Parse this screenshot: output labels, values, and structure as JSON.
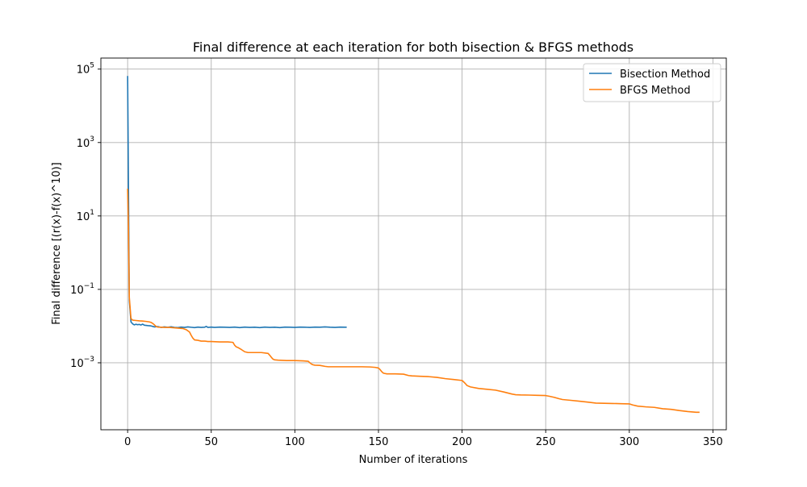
{
  "chart_data": {
    "type": "line",
    "title": "Final difference at each iteration for both bisection & BFGS methods",
    "xlabel": "Number of iterations",
    "ylabel": "Final difference [(r(x)-f(x)^10)]",
    "xlim": [
      -16,
      358
    ],
    "ylim": [
      1.5e-05,
      200000
    ],
    "yscale": "log",
    "grid": true,
    "legend_position": "upper right",
    "x_ticks": [
      {
        "value": 0,
        "label": "0"
      },
      {
        "value": 50,
        "label": "50"
      },
      {
        "value": 100,
        "label": "100"
      },
      {
        "value": 150,
        "label": "150"
      },
      {
        "value": 200,
        "label": "200"
      },
      {
        "value": 250,
        "label": "250"
      },
      {
        "value": 300,
        "label": "300"
      },
      {
        "value": 350,
        "label": "350"
      }
    ],
    "y_ticks": [
      {
        "value": 0.001,
        "base": "10",
        "exp": "−3"
      },
      {
        "value": 0.1,
        "base": "10",
        "exp": "−1"
      },
      {
        "value": 10,
        "base": "10",
        "exp": "1"
      },
      {
        "value": 1000,
        "base": "10",
        "exp": "3"
      },
      {
        "value": 100000,
        "base": "10",
        "exp": "5"
      }
    ],
    "series": [
      {
        "name": "Bisection Method",
        "color": "#1f77b4",
        "x": [
          0,
          1,
          2,
          3,
          4,
          5,
          6,
          7,
          8,
          9,
          10,
          12,
          14,
          16,
          18,
          20,
          22,
          24,
          26,
          28,
          30,
          32,
          34,
          36,
          38,
          40,
          42,
          44,
          46,
          47,
          48,
          50,
          52,
          55,
          58,
          61,
          64,
          67,
          70,
          73,
          76,
          79,
          82,
          85,
          88,
          91,
          94,
          97,
          100,
          103,
          106,
          109,
          112,
          115,
          118,
          121,
          124,
          127,
          130,
          131
        ],
        "y": [
          65000,
          0.05,
          0.013,
          0.0115,
          0.0108,
          0.0112,
          0.0109,
          0.0111,
          0.0107,
          0.0113,
          0.0106,
          0.0103,
          0.0101,
          0.0095,
          0.0097,
          0.0092,
          0.0095,
          0.0093,
          0.0096,
          0.0092,
          0.0091,
          0.0094,
          0.0092,
          0.0095,
          0.0093,
          0.0091,
          0.0094,
          0.0092,
          0.0093,
          0.0098,
          0.0092,
          0.0094,
          0.0092,
          0.0094,
          0.0093,
          0.0092,
          0.0094,
          0.0091,
          0.0094,
          0.0092,
          0.0093,
          0.0091,
          0.0094,
          0.0092,
          0.0093,
          0.0091,
          0.0094,
          0.0093,
          0.0092,
          0.0094,
          0.0093,
          0.0092,
          0.0094,
          0.0093,
          0.0095,
          0.0093,
          0.0092,
          0.0094,
          0.0093,
          0.0093
        ]
      },
      {
        "name": "BFGS Method",
        "color": "#ff7f0e",
        "x": [
          0,
          0.5,
          1,
          2,
          3,
          5,
          7,
          9,
          11,
          13,
          14,
          15,
          16,
          17,
          18,
          20,
          22,
          25,
          30,
          33,
          35,
          37,
          38,
          39,
          40,
          42,
          44,
          46,
          48,
          50,
          55,
          60,
          63,
          64,
          65,
          66,
          68,
          70,
          72,
          75,
          80,
          84,
          85,
          86,
          87,
          88,
          90,
          95,
          100,
          105,
          108,
          109,
          110,
          111,
          112,
          115,
          118,
          120,
          125,
          130,
          140,
          145,
          148,
          150,
          151,
          152,
          153,
          155,
          160,
          165,
          168,
          170,
          175,
          180,
          185,
          190,
          195,
          200,
          201,
          202,
          203,
          205,
          210,
          215,
          220,
          225,
          230,
          232,
          235,
          240,
          245,
          250,
          252,
          255,
          258,
          260,
          265,
          270,
          275,
          280,
          285,
          290,
          295,
          300,
          302,
          305,
          310,
          315,
          320,
          325,
          330,
          335,
          340,
          342
        ],
        "y": [
          55,
          5,
          0.06,
          0.016,
          0.0145,
          0.0142,
          0.0139,
          0.0137,
          0.0134,
          0.013,
          0.0126,
          0.0118,
          0.0108,
          0.0098,
          0.0094,
          0.0093,
          0.0092,
          0.0092,
          0.0088,
          0.0086,
          0.008,
          0.0069,
          0.0056,
          0.0047,
          0.0042,
          0.0041,
          0.0039,
          0.0039,
          0.0038,
          0.0038,
          0.0037,
          0.0037,
          0.0036,
          0.003,
          0.0027,
          0.0026,
          0.0023,
          0.002,
          0.0019,
          0.0019,
          0.0019,
          0.0018,
          0.0016,
          0.0014,
          0.00125,
          0.0012,
          0.00118,
          0.00115,
          0.00115,
          0.00113,
          0.0011,
          0.001,
          0.00092,
          0.00088,
          0.00086,
          0.00085,
          0.0008,
          0.00078,
          0.00078,
          0.00078,
          0.00078,
          0.00077,
          0.00075,
          0.00072,
          0.00065,
          0.00057,
          0.00052,
          0.0005,
          0.0005,
          0.00049,
          0.00045,
          0.00044,
          0.00043,
          0.00042,
          0.0004,
          0.00037,
          0.00035,
          0.00033,
          0.0003,
          0.00027,
          0.00024,
          0.00022,
          0.0002,
          0.00019,
          0.00018,
          0.00016,
          0.00014,
          0.000135,
          0.000133,
          0.000132,
          0.00013,
          0.000128,
          0.000123,
          0.000115,
          0.000105,
          0.0001,
          9.5e-05,
          9e-05,
          8.5e-05,
          8e-05,
          7.9e-05,
          7.8e-05,
          7.7e-05,
          7.6e-05,
          7.1e-05,
          6.6e-05,
          6.3e-05,
          6.1e-05,
          5.6e-05,
          5.4e-05,
          5e-05,
          4.7e-05,
          4.5e-05,
          4.5e-05
        ]
      }
    ]
  }
}
